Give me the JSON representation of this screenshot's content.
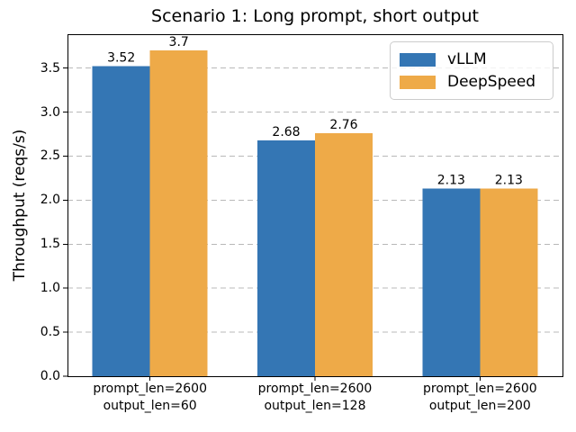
{
  "chart_data": {
    "type": "bar",
    "title": "Scenario 1: Long prompt, short output",
    "xlabel": "",
    "ylabel": "Throughput (reqs/s)",
    "categories": [
      {
        "line1": "prompt_len=2600",
        "line2": "output_len=60"
      },
      {
        "line1": "prompt_len=2600",
        "line2": "output_len=128"
      },
      {
        "line1": "prompt_len=2600",
        "line2": "output_len=200"
      }
    ],
    "series": [
      {
        "name": "vLLM",
        "color": "#3476b4",
        "values": [
          3.52,
          2.68,
          2.13
        ],
        "value_labels": [
          "3.52",
          "2.68",
          "2.13"
        ]
      },
      {
        "name": "DeepSpeed",
        "color": "#eeaa48",
        "values": [
          3.7,
          2.76,
          2.13
        ],
        "value_labels": [
          "3.7",
          "2.76",
          "2.13"
        ]
      }
    ],
    "ylim": [
      0,
      3.885
    ],
    "yticks": {
      "values": [
        0,
        0.5,
        1,
        1.5,
        2,
        2.5,
        3,
        3.5
      ],
      "labels": [
        "0.0",
        "0.5",
        "1.0",
        "1.5",
        "2.0",
        "2.5",
        "3.0",
        "3.5"
      ]
    },
    "grid": {
      "axis": "y",
      "linestyle": "dashed",
      "color": "#b8b8b8"
    },
    "legend": {
      "location": "upper right"
    },
    "colors": {
      "spine": "#000000",
      "text": "#000000",
      "background": "#ffffff"
    }
  }
}
